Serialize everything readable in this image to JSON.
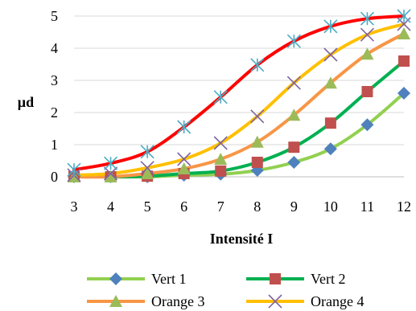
{
  "chart_data": {
    "type": "line",
    "x": [
      3,
      4,
      5,
      6,
      7,
      8,
      9,
      10,
      11,
      12
    ],
    "xlabel": "Intensité I",
    "ylabel": "µd",
    "xlim": [
      3,
      12
    ],
    "ylim": [
      0,
      5
    ],
    "yticks": [
      "0",
      "1",
      "2",
      "3",
      "4",
      "5"
    ],
    "xticks": [
      "3",
      "4",
      "5",
      "6",
      "7",
      "8",
      "9",
      "10",
      "11",
      "12"
    ],
    "grid": "horizontal",
    "legend": "bottom",
    "series": [
      {
        "name": "Vert 1",
        "line_color": "#92D050",
        "marker": "diamond",
        "marker_color": "#4F81BD",
        "values": [
          0.0,
          0.0,
          0.0,
          0.05,
          0.08,
          0.2,
          0.45,
          0.87,
          1.62,
          2.6
        ]
      },
      {
        "name": "Vert 2",
        "line_color": "#00B050",
        "marker": "square",
        "marker_color": "#C0504D",
        "values": [
          0.0,
          0.0,
          0.02,
          0.1,
          0.18,
          0.45,
          0.92,
          1.67,
          2.65,
          3.6
        ]
      },
      {
        "name": "Orange 3",
        "line_color": "#F79646",
        "marker": "triangle",
        "marker_color": "#9BBB59",
        "values": [
          0.0,
          0.0,
          0.1,
          0.25,
          0.55,
          1.08,
          1.92,
          2.92,
          3.82,
          4.45
        ]
      },
      {
        "name": "Orange 4",
        "line_color": "#FFC000",
        "marker": "x",
        "marker_color": "#8064A2",
        "values": [
          0.05,
          0.1,
          0.28,
          0.55,
          1.05,
          1.88,
          2.92,
          3.8,
          4.42,
          4.75
        ]
      },
      {
        "name": "",
        "line_color": "#FF0000",
        "marker": "star",
        "marker_color": "#4BACC6",
        "values": [
          0.22,
          0.42,
          0.78,
          1.55,
          2.48,
          3.48,
          4.22,
          4.68,
          4.92,
          5.0
        ]
      }
    ]
  }
}
